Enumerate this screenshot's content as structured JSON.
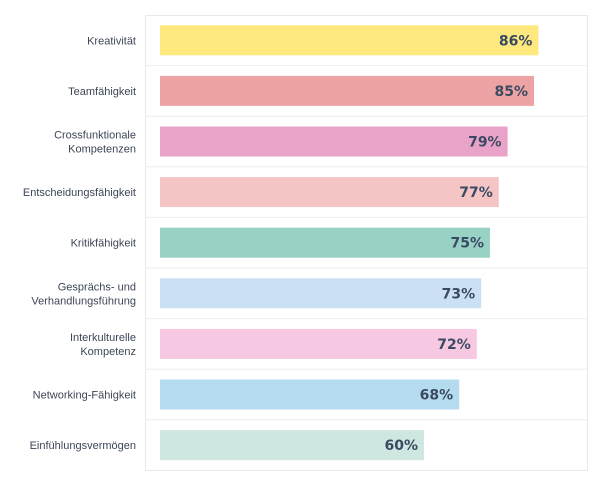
{
  "chart_data": {
    "type": "bar",
    "orientation": "horizontal",
    "title": "",
    "xlabel": "",
    "ylabel": "",
    "xlim": [
      0,
      100
    ],
    "grid": true,
    "value_suffix": "%",
    "categories": [
      [
        "Kreativität"
      ],
      [
        "Teamfähigkeit"
      ],
      [
        "Crossfunktionale",
        "Kompetenzen"
      ],
      [
        "Entscheidungsfähigkeit"
      ],
      [
        "Kritikfähigkeit"
      ],
      [
        "Gesprächs- und",
        "Verhandlungsführung"
      ],
      [
        "Interkulturelle",
        "Kompetenz"
      ],
      [
        "Networking-Fähigkeit"
      ],
      [
        "Einfühlungsvermögen"
      ]
    ],
    "values": [
      86,
      85,
      79,
      77,
      75,
      73,
      72,
      68,
      60
    ],
    "value_labels": [
      "86%",
      "85%",
      "79%",
      "77%",
      "75%",
      "73%",
      "72%",
      "68%",
      "60%"
    ],
    "colors": [
      "#fde97d",
      "#eda3a3",
      "#eaa3c8",
      "#f5c4c4",
      "#98d2c4",
      "#cbe0f5",
      "#f6c8e1",
      "#b4dbee",
      "#cfe7e1"
    ]
  }
}
